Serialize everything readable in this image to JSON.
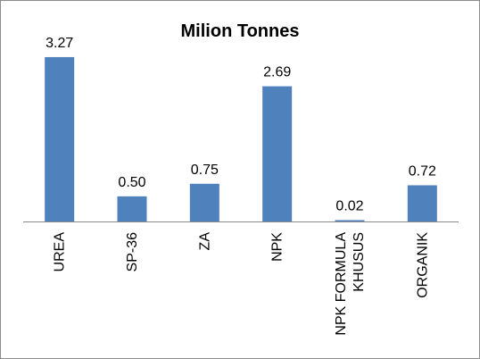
{
  "chart_data": {
    "type": "bar",
    "title": "Milion Tonnes",
    "xlabel": "",
    "ylabel": "",
    "categories": [
      "UREA",
      "SP-36",
      "ZA",
      "NPK",
      "NPK FORMULA KHUSUS",
      "ORGANIK"
    ],
    "category_lines": [
      [
        "UREA"
      ],
      [
        "SP-36"
      ],
      [
        "ZA"
      ],
      [
        "NPK"
      ],
      [
        "NPK FORMULA",
        "KHUSUS"
      ],
      [
        "ORGANIK"
      ]
    ],
    "values": [
      3.27,
      0.5,
      0.75,
      2.69,
      0.02,
      0.72
    ],
    "data_labels": [
      "3.27",
      "0.50",
      "0.75",
      "2.69",
      "0.02",
      "0.72"
    ],
    "ylim": [
      0,
      3.5
    ],
    "grid": false,
    "legend": "none",
    "colors": {
      "bar": "#4f81bd",
      "axis": "#888888",
      "border": "#8c8c8c"
    }
  }
}
